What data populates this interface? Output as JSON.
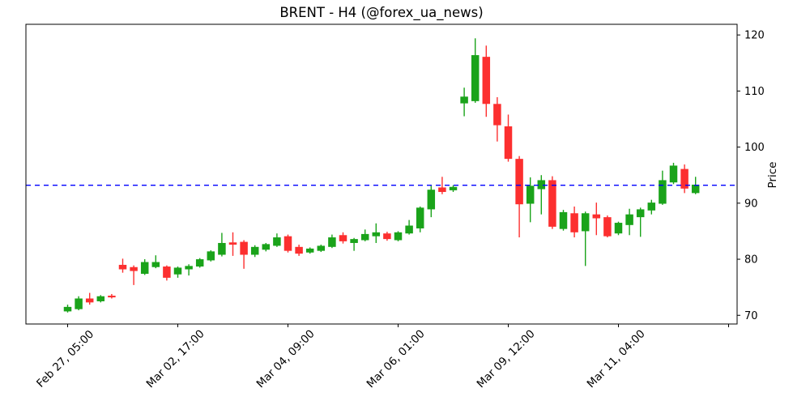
{
  "chart_data": {
    "type": "candlestick",
    "title": "BRENT - H4 (@forex_ua_news)",
    "ylabel": "Price",
    "grid": false,
    "legend": null,
    "ylim": [
      68.45,
      121.9
    ],
    "y_ticks": [
      70,
      80,
      90,
      100,
      110,
      120
    ],
    "x_tick_indices": [
      0,
      10,
      20,
      30,
      40,
      50,
      60
    ],
    "x_tick_labels": [
      "Feb 27, 05:00",
      "Mar 02, 17:00",
      "Mar 04, 09:00",
      "Mar 06, 01:00",
      "Mar 09, 12:00",
      "Mar 11, 04:00",
      ""
    ],
    "reference_line": {
      "price": 93.2,
      "color": "#0000ff",
      "style": "dashed"
    },
    "colors": {
      "up": "#1aa31a",
      "down": "#fc2f2f",
      "axis": "#000000",
      "background": "#ffffff"
    },
    "ohlc": [
      [
        70.7,
        71.9,
        70.5,
        71.5
      ],
      [
        71.1,
        73.4,
        70.9,
        73.0
      ],
      [
        73.0,
        74.0,
        71.9,
        72.3
      ],
      [
        72.5,
        73.6,
        72.3,
        73.4
      ],
      [
        73.5,
        73.8,
        73.0,
        73.2
      ],
      [
        79.0,
        80.1,
        77.6,
        78.2
      ],
      [
        78.6,
        78.9,
        75.4,
        77.9
      ],
      [
        77.4,
        80.0,
        77.2,
        79.5
      ],
      [
        78.6,
        80.7,
        78.4,
        79.5
      ],
      [
        78.7,
        78.9,
        76.2,
        76.7
      ],
      [
        77.3,
        78.7,
        76.7,
        78.5
      ],
      [
        78.2,
        79.1,
        77.1,
        78.8
      ],
      [
        78.7,
        80.2,
        78.5,
        80.0
      ],
      [
        79.8,
        81.6,
        79.6,
        81.4
      ],
      [
        80.8,
        84.7,
        80.5,
        82.9
      ],
      [
        83.0,
        84.8,
        80.6,
        82.6
      ],
      [
        83.1,
        83.4,
        78.3,
        80.8
      ],
      [
        80.8,
        82.5,
        80.4,
        82.2
      ],
      [
        81.7,
        82.9,
        81.4,
        82.7
      ],
      [
        82.4,
        84.6,
        82.2,
        83.9
      ],
      [
        84.1,
        84.4,
        81.2,
        81.5
      ],
      [
        82.2,
        82.6,
        80.6,
        81.0
      ],
      [
        81.2,
        82.1,
        81.0,
        81.9
      ],
      [
        81.5,
        82.6,
        81.3,
        82.4
      ],
      [
        82.2,
        84.4,
        82.0,
        83.9
      ],
      [
        84.3,
        84.8,
        82.8,
        83.2
      ],
      [
        82.9,
        83.8,
        81.5,
        83.6
      ],
      [
        83.4,
        85.3,
        83.2,
        84.5
      ],
      [
        84.1,
        86.4,
        82.9,
        84.8
      ],
      [
        84.6,
        84.9,
        83.3,
        83.6
      ],
      [
        83.4,
        85.0,
        83.2,
        84.8
      ],
      [
        84.6,
        87.0,
        84.4,
        86.0
      ],
      [
        85.5,
        89.4,
        84.8,
        89.2
      ],
      [
        88.9,
        93.1,
        87.5,
        92.4
      ],
      [
        92.8,
        94.7,
        91.6,
        92.0
      ],
      [
        92.3,
        93.2,
        92.0,
        92.9
      ],
      [
        107.8,
        110.6,
        105.5,
        109.0
      ],
      [
        108.2,
        119.4,
        107.9,
        116.4
      ],
      [
        116.1,
        118.1,
        105.4,
        107.7
      ],
      [
        107.7,
        108.9,
        101.0,
        103.9
      ],
      [
        103.7,
        105.8,
        97.4,
        97.9
      ],
      [
        97.9,
        98.4,
        83.9,
        89.8
      ],
      [
        89.9,
        94.6,
        86.6,
        93.1
      ],
      [
        92.5,
        95.0,
        88.0,
        94.1
      ],
      [
        94.1,
        94.8,
        85.4,
        85.8
      ],
      [
        85.4,
        88.8,
        85.1,
        88.4
      ],
      [
        88.2,
        89.4,
        83.9,
        84.8
      ],
      [
        85.0,
        88.5,
        78.8,
        88.2
      ],
      [
        88.0,
        90.1,
        84.3,
        87.3
      ],
      [
        87.5,
        87.8,
        83.9,
        84.1
      ],
      [
        84.6,
        86.7,
        84.3,
        86.5
      ],
      [
        86.1,
        89.0,
        84.3,
        88.0
      ],
      [
        87.5,
        89.2,
        84.0,
        88.9
      ],
      [
        88.7,
        90.6,
        88.0,
        90.1
      ],
      [
        89.9,
        95.8,
        89.7,
        94.1
      ],
      [
        93.7,
        97.2,
        93.4,
        96.7
      ],
      [
        96.1,
        96.9,
        91.8,
        92.6
      ],
      [
        91.8,
        94.7,
        91.6,
        93.3
      ]
    ]
  }
}
